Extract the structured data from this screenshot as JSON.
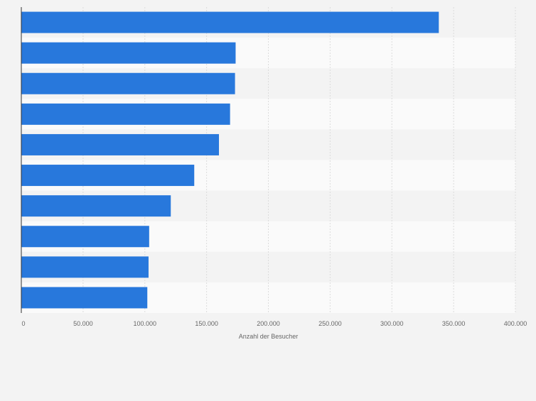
{
  "chart_data": {
    "type": "bar",
    "orientation": "horizontal",
    "categories": [
      "",
      "",
      "",
      "",
      "",
      "",
      "",
      "",
      "",
      ""
    ],
    "values": [
      338000,
      173500,
      173000,
      169000,
      160000,
      140000,
      121000,
      103500,
      103000,
      102000
    ],
    "xlabel": "Anzahl der Besucher",
    "xlim": [
      0,
      400000
    ],
    "x_ticks": [
      {
        "value": 0,
        "label": "0"
      },
      {
        "value": 50000,
        "label": "50.000"
      },
      {
        "value": 100000,
        "label": "100.000"
      },
      {
        "value": 150000,
        "label": "150.000"
      },
      {
        "value": 200000,
        "label": "200.000"
      },
      {
        "value": 250000,
        "label": "250.000"
      },
      {
        "value": 300000,
        "label": "300.000"
      },
      {
        "value": 350000,
        "label": "350.000"
      },
      {
        "value": 400000,
        "label": "400.000"
      }
    ],
    "grid": true,
    "colors": {
      "bar": "#2878dc",
      "band_light": "#fafafa",
      "band_dark": "#f3f3f3",
      "grid": "#dcdcdc",
      "axis": "#333333",
      "text": "#666666"
    }
  }
}
